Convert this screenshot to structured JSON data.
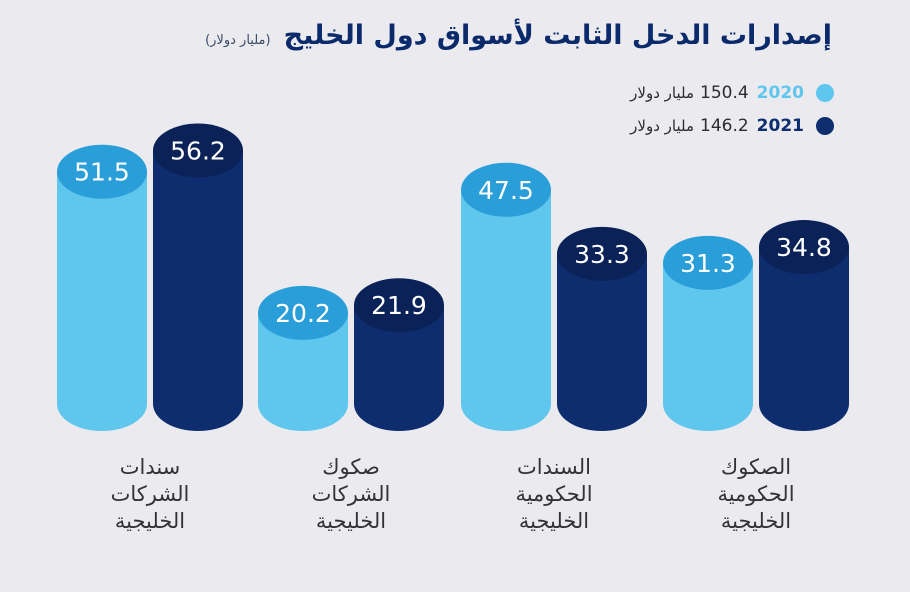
{
  "title": {
    "main": "إصدارات الدخل الثابت لأسواق دول الخليج",
    "unit": "(مليار دولار)"
  },
  "legend": [
    {
      "year": "2020",
      "total": "150.4",
      "unit": "مليار دولار",
      "color": "#5fc6ee"
    },
    {
      "year": "2021",
      "total": "146.2",
      "unit": "مليار دولار",
      "color": "#0d2d6e"
    }
  ],
  "colors": {
    "series_2020_body": "#5fc6ee",
    "series_2020_top": "#2a9ed8",
    "series_2021_body": "#0d2d6e",
    "series_2021_top": "#0a2258",
    "background": "#ebebef",
    "title": "#0b2a6b"
  },
  "chart_data": {
    "type": "bar",
    "title": "إصدارات الدخل الثابت لأسواق دول الخليج",
    "ylabel": "مليار دولار",
    "categories": [
      "سندات\nالشركات\nالخليجية",
      "صكوك\nالشركات\nالخليجية",
      "السندات\nالحكومية\nالخليجية",
      "الصكوك\nالحكومية\nالخليجية"
    ],
    "series": [
      {
        "name": "2020",
        "values": [
          51.5,
          20.2,
          47.5,
          31.3
        ]
      },
      {
        "name": "2021",
        "values": [
          56.2,
          21.9,
          33.3,
          34.8
        ]
      }
    ],
    "ylim": [
      0,
      60
    ],
    "grid": false,
    "legend_position": "top-right"
  }
}
